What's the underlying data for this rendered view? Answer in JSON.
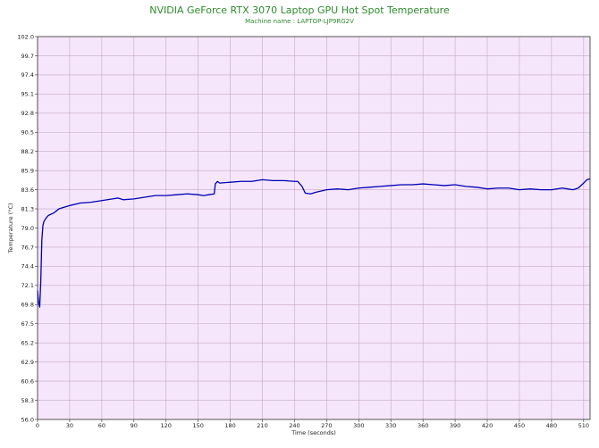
{
  "chart_data": {
    "type": "line",
    "title": "NVIDIA GeForce RTX 3070 Laptop GPU Hot Spot Temperature",
    "subtitle": "Machine name : LAPTOP-LJP9RG2V",
    "xlabel": "Time (seconds)",
    "ylabel": "Temperature (°C)",
    "xlim": [
      0,
      516
    ],
    "ylim": [
      56.0,
      102.0
    ],
    "x_ticks": [
      0,
      30,
      60,
      90,
      120,
      150,
      180,
      210,
      240,
      270,
      300,
      330,
      360,
      390,
      420,
      450,
      480,
      510
    ],
    "y_ticks": [
      "56.0",
      "58.3",
      "60.6",
      "62.9",
      "65.2",
      "67.5",
      "69.8",
      "72.1",
      "74.4",
      "76.7",
      "79.0",
      "81.3",
      "83.6",
      "85.9",
      "88.2",
      "90.5",
      "92.8",
      "95.1",
      "97.4",
      "99.7",
      "102.0"
    ],
    "grid": true,
    "background_color": "#f5e6fb",
    "grid_color": "#c8a8c8",
    "series_color": "#0000b4",
    "series": [
      {
        "x": [
          0,
          1,
          2,
          3,
          4,
          5,
          6,
          8,
          10,
          15,
          20,
          25,
          30,
          40,
          50,
          60,
          70,
          75,
          80,
          90,
          100,
          110,
          120,
          130,
          140,
          150,
          155,
          160,
          165,
          166,
          168,
          170,
          180,
          190,
          200,
          210,
          220,
          230,
          240,
          243,
          247,
          250,
          255,
          260,
          270,
          280,
          290,
          300,
          310,
          320,
          330,
          340,
          350,
          360,
          370,
          380,
          390,
          400,
          410,
          420,
          430,
          440,
          450,
          460,
          470,
          480,
          490,
          500,
          505,
          510,
          513,
          516
        ],
        "values": [
          71.5,
          70.0,
          69.5,
          72.5,
          77.5,
          79.3,
          79.8,
          80.2,
          80.5,
          80.8,
          81.3,
          81.5,
          81.7,
          82.0,
          82.1,
          82.3,
          82.5,
          82.6,
          82.4,
          82.5,
          82.7,
          82.9,
          82.9,
          83.0,
          83.1,
          83.0,
          82.9,
          83.0,
          83.1,
          84.3,
          84.6,
          84.4,
          84.5,
          84.6,
          84.6,
          84.8,
          84.7,
          84.7,
          84.6,
          84.6,
          84.0,
          83.2,
          83.1,
          83.3,
          83.6,
          83.7,
          83.6,
          83.8,
          83.9,
          84.0,
          84.1,
          84.2,
          84.2,
          84.3,
          84.2,
          84.1,
          84.2,
          84.0,
          83.9,
          83.7,
          83.8,
          83.8,
          83.6,
          83.7,
          83.6,
          83.6,
          83.8,
          83.6,
          83.8,
          84.4,
          84.8,
          84.9
        ]
      }
    ]
  }
}
